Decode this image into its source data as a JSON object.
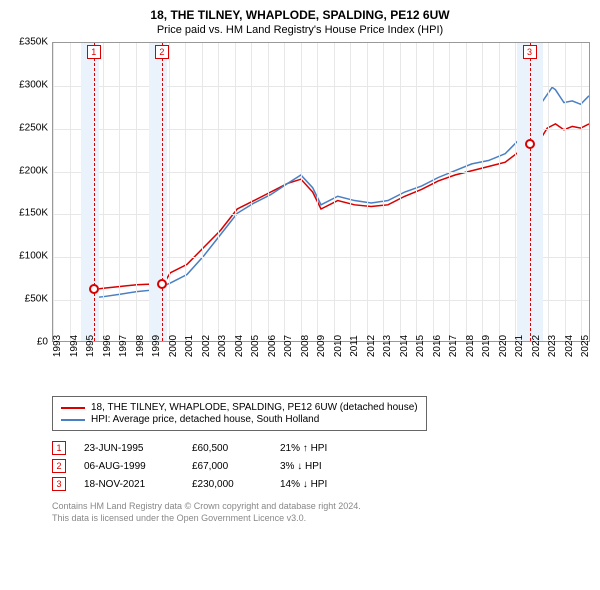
{
  "title": "18, THE TILNEY, WHAPLODE, SPALDING, PE12 6UW",
  "subtitle": "Price paid vs. HM Land Registry's House Price Index (HPI)",
  "chart": {
    "type": "line",
    "background_color": "#ffffff",
    "grid_color": "#e7e7e7",
    "border_color": "#999999",
    "ylim": [
      0,
      350000
    ],
    "ytick_step": 50000,
    "ytick_labels": [
      "£0",
      "£50K",
      "£100K",
      "£150K",
      "£200K",
      "£250K",
      "£300K",
      "£350K"
    ],
    "xlim": [
      1993,
      2025
    ],
    "xticks": [
      1993,
      1994,
      1995,
      1996,
      1997,
      1998,
      1999,
      2000,
      2001,
      2002,
      2003,
      2004,
      2005,
      2006,
      2007,
      2008,
      2009,
      2010,
      2011,
      2012,
      2013,
      2014,
      2015,
      2016,
      2017,
      2018,
      2019,
      2020,
      2021,
      2022,
      2023,
      2024,
      2025
    ],
    "band_color": "#eaf2fb",
    "bands": [
      {
        "from": 1994.7,
        "to": 1995.8
      },
      {
        "from": 1998.8,
        "to": 1999.9
      },
      {
        "from": 2021.1,
        "to": 2022.7
      }
    ],
    "markers": [
      {
        "id": "1",
        "x": 1995.47,
        "y": 60500,
        "color": "#d80000"
      },
      {
        "id": "2",
        "x": 1999.6,
        "y": 67000,
        "color": "#d80000"
      },
      {
        "id": "3",
        "x": 2021.88,
        "y": 230000,
        "color": "#d80000"
      }
    ],
    "series": [
      {
        "name": "18, THE TILNEY, WHAPLODE, SPALDING, PE12 6UW (detached house)",
        "color": "#d80000",
        "line_width": 1.5,
        "points": [
          [
            1995.0,
            58000
          ],
          [
            1995.47,
            60500
          ],
          [
            1996,
            62000
          ],
          [
            1997,
            64000
          ],
          [
            1998,
            66000
          ],
          [
            1999,
            67000
          ],
          [
            1999.6,
            67000
          ],
          [
            2000,
            80000
          ],
          [
            2001,
            90000
          ],
          [
            2002,
            110000
          ],
          [
            2003,
            130000
          ],
          [
            2004,
            155000
          ],
          [
            2005,
            165000
          ],
          [
            2006,
            175000
          ],
          [
            2007,
            185000
          ],
          [
            2007.8,
            190000
          ],
          [
            2008.5,
            175000
          ],
          [
            2009,
            155000
          ],
          [
            2010,
            165000
          ],
          [
            2011,
            160000
          ],
          [
            2012,
            158000
          ],
          [
            2013,
            160000
          ],
          [
            2014,
            170000
          ],
          [
            2015,
            178000
          ],
          [
            2016,
            188000
          ],
          [
            2017,
            195000
          ],
          [
            2018,
            200000
          ],
          [
            2019,
            205000
          ],
          [
            2020,
            210000
          ],
          [
            2021,
            225000
          ],
          [
            2021.88,
            230000
          ],
          [
            2022.5,
            250000
          ],
          [
            2023,
            255000
          ],
          [
            2023.5,
            248000
          ],
          [
            2024,
            252000
          ],
          [
            2024.5,
            250000
          ],
          [
            2025,
            255000
          ]
        ]
      },
      {
        "name": "HPI: Average price, detached house, South Holland",
        "color": "#4a7fc4",
        "line_width": 1.5,
        "points": [
          [
            1995.0,
            50000
          ],
          [
            1996,
            52000
          ],
          [
            1997,
            55000
          ],
          [
            1998,
            58000
          ],
          [
            1999,
            60000
          ],
          [
            2000,
            68000
          ],
          [
            2001,
            78000
          ],
          [
            2002,
            100000
          ],
          [
            2003,
            125000
          ],
          [
            2004,
            150000
          ],
          [
            2005,
            162000
          ],
          [
            2006,
            172000
          ],
          [
            2007,
            185000
          ],
          [
            2007.8,
            195000
          ],
          [
            2008.5,
            180000
          ],
          [
            2009,
            160000
          ],
          [
            2010,
            170000
          ],
          [
            2011,
            165000
          ],
          [
            2012,
            162000
          ],
          [
            2013,
            165000
          ],
          [
            2014,
            175000
          ],
          [
            2015,
            182000
          ],
          [
            2016,
            192000
          ],
          [
            2017,
            200000
          ],
          [
            2018,
            208000
          ],
          [
            2019,
            212000
          ],
          [
            2020,
            220000
          ],
          [
            2021,
            240000
          ],
          [
            2022,
            275000
          ],
          [
            2022.8,
            298000
          ],
          [
            2023,
            295000
          ],
          [
            2023.5,
            280000
          ],
          [
            2024,
            282000
          ],
          [
            2024.5,
            278000
          ],
          [
            2025,
            288000
          ]
        ]
      }
    ]
  },
  "legend": {
    "items": [
      {
        "color": "#d80000",
        "label": "18, THE TILNEY, WHAPLODE, SPALDING, PE12 6UW (detached house)"
      },
      {
        "color": "#4a7fc4",
        "label": "HPI: Average price, detached house, South Holland"
      }
    ]
  },
  "events": [
    {
      "id": "1",
      "color": "#d80000",
      "date": "23-JUN-1995",
      "price": "£60,500",
      "delta": "21% ↑ HPI"
    },
    {
      "id": "2",
      "color": "#d80000",
      "date": "06-AUG-1999",
      "price": "£67,000",
      "delta": "3% ↓ HPI"
    },
    {
      "id": "3",
      "color": "#d80000",
      "date": "18-NOV-2021",
      "price": "£230,000",
      "delta": "14% ↓ HPI"
    }
  ],
  "footer": {
    "line1": "Contains HM Land Registry data © Crown copyright and database right 2024.",
    "line2": "This data is licensed under the Open Government Licence v3.0."
  }
}
